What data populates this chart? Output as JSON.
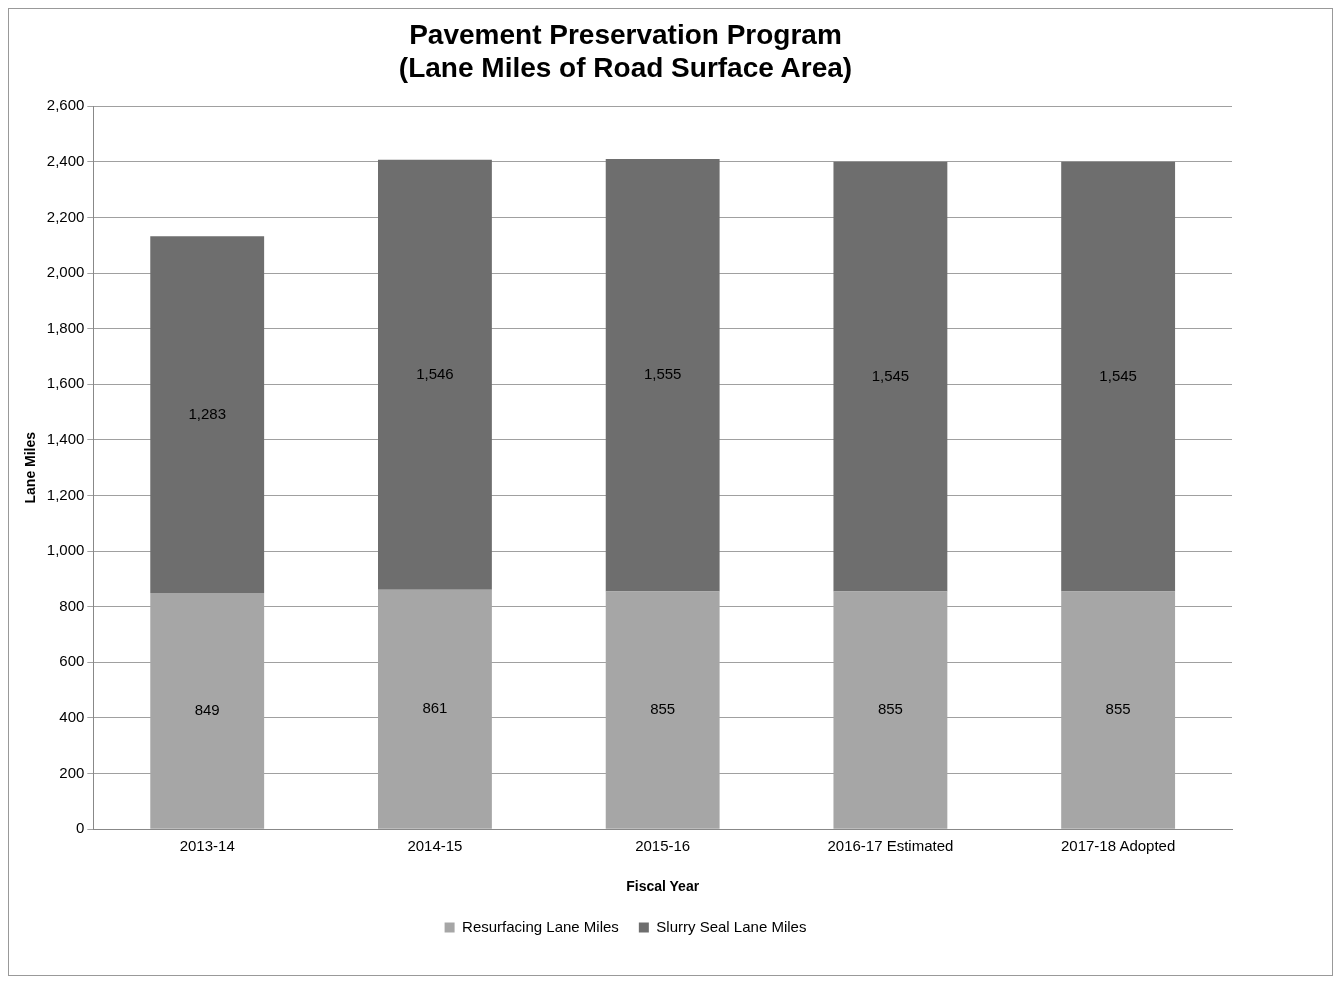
{
  "chart_data": {
    "type": "bar",
    "title": [
      "Pavement Preservation Program",
      "(Lane Miles of Road Surface Area)"
    ],
    "xlabel": "Fiscal Year",
    "ylabel": "Lane Miles",
    "categories": [
      "2013-14",
      "2014-15",
      "2015-16",
      "2016-17 Estimated",
      "2017-18 Adopted"
    ],
    "series": [
      {
        "name": "Resurfacing Lane Miles",
        "color": "#a6a6a6",
        "values": [
          849,
          861,
          855,
          855,
          855
        ],
        "value_labels": [
          "849",
          "861",
          "855",
          "855",
          "855"
        ]
      },
      {
        "name": "Slurry Seal Lane Miles",
        "color": "#6e6e6e",
        "values": [
          1283,
          1546,
          1555,
          1545,
          1545
        ],
        "value_labels": [
          "1,283",
          "1,546",
          "1,555",
          "1,545",
          "1,545"
        ]
      }
    ],
    "stacked": true,
    "ylim": [
      0,
      2600
    ],
    "yticks": [
      0,
      200,
      400,
      600,
      800,
      {
        "value": 1000,
        "label": "1,000"
      },
      {
        "value": 1200,
        "label": "1,200"
      },
      {
        "value": 1400,
        "label": "1,400"
      },
      {
        "value": 1600,
        "label": "1,600"
      },
      {
        "value": 1800,
        "label": "1,800"
      },
      {
        "value": 2000,
        "label": "2,000"
      },
      {
        "value": 2200,
        "label": "2,200"
      },
      {
        "value": 2400,
        "label": "2,400"
      },
      {
        "value": 2600,
        "label": "2,600"
      }
    ],
    "grid": "y",
    "legend": "bottom"
  }
}
